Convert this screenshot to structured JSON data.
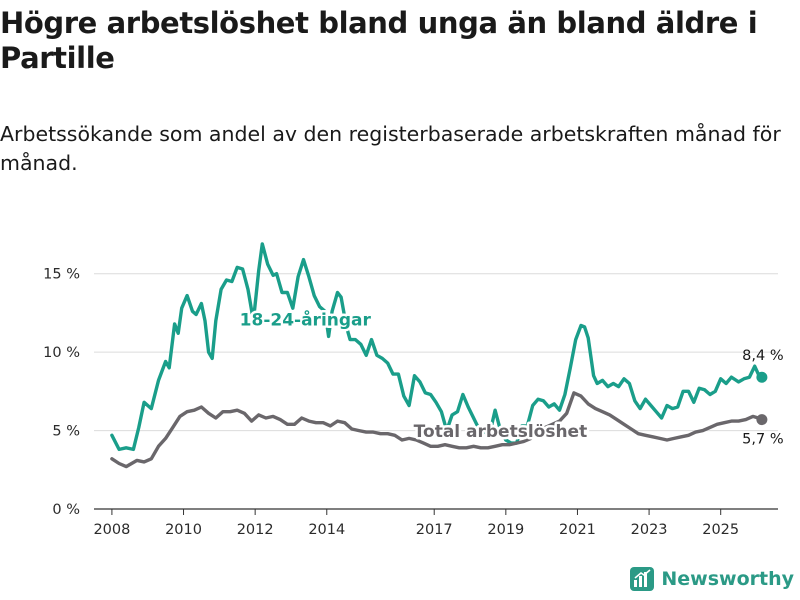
{
  "header": {
    "title": "Högre arbetslöshet bland unga än bland äldre i Partille",
    "subtitle": "Arbetssökande som andel av den registerbaserade arbetskraften månad för månad."
  },
  "brand": {
    "name": "Newsworthy",
    "icon": "newsworthy-logo-icon",
    "color": "#2b9a86"
  },
  "chart_data": {
    "type": "line",
    "title": "Högre arbetslöshet bland unga än bland äldre i Partille",
    "subtitle": "Arbetssökande som andel av den registerbaserade arbetskraften månad för månad.",
    "xlabel": "",
    "ylabel": "",
    "xlim": [
      2007.5,
      2026.6
    ],
    "ylim": [
      0,
      16
    ],
    "x_ticks": [
      2008,
      2010,
      2012,
      2014,
      2017,
      2019,
      2021,
      2023,
      2025
    ],
    "x_tick_labels": [
      "2008",
      "2010",
      "2012",
      "2014",
      "2017",
      "2019",
      "2021",
      "2023",
      "2025"
    ],
    "y_ticks": [
      0,
      5,
      10,
      15
    ],
    "y_tick_labels": [
      "0 %",
      "5 %",
      "10 %",
      "15 %"
    ],
    "grid": true,
    "series": [
      {
        "name": "18-24-åringar",
        "label": "18-24-åringar",
        "color": "#1a9e8a",
        "end_label": "8,4 %",
        "points": [
          [
            2008.0,
            4.7
          ],
          [
            2008.2,
            3.8
          ],
          [
            2008.4,
            3.9
          ],
          [
            2008.6,
            3.8
          ],
          [
            2008.75,
            5.2
          ],
          [
            2008.9,
            6.8
          ],
          [
            2009.1,
            6.4
          ],
          [
            2009.3,
            8.2
          ],
          [
            2009.5,
            9.4
          ],
          [
            2009.6,
            9.0
          ],
          [
            2009.75,
            11.8
          ],
          [
            2009.85,
            11.2
          ],
          [
            2009.95,
            12.8
          ],
          [
            2010.1,
            13.6
          ],
          [
            2010.25,
            12.6
          ],
          [
            2010.35,
            12.4
          ],
          [
            2010.5,
            13.1
          ],
          [
            2010.6,
            12.0
          ],
          [
            2010.7,
            10.0
          ],
          [
            2010.8,
            9.6
          ],
          [
            2010.9,
            12.0
          ],
          [
            2011.05,
            14.0
          ],
          [
            2011.2,
            14.6
          ],
          [
            2011.35,
            14.5
          ],
          [
            2011.5,
            15.4
          ],
          [
            2011.65,
            15.3
          ],
          [
            2011.8,
            14.0
          ],
          [
            2011.95,
            12.0
          ],
          [
            2012.1,
            15.2
          ],
          [
            2012.2,
            16.9
          ],
          [
            2012.35,
            15.6
          ],
          [
            2012.5,
            14.9
          ],
          [
            2012.6,
            15.0
          ],
          [
            2012.75,
            13.8
          ],
          [
            2012.9,
            13.8
          ],
          [
            2013.05,
            12.8
          ],
          [
            2013.2,
            14.8
          ],
          [
            2013.35,
            15.9
          ],
          [
            2013.5,
            14.8
          ],
          [
            2013.65,
            13.6
          ],
          [
            2013.8,
            12.9
          ],
          [
            2013.95,
            12.6
          ],
          [
            2014.05,
            11.0
          ],
          [
            2014.15,
            12.6
          ],
          [
            2014.3,
            13.8
          ],
          [
            2014.4,
            13.5
          ],
          [
            2014.55,
            11.6
          ],
          [
            2014.65,
            10.8
          ],
          [
            2014.8,
            10.8
          ],
          [
            2014.95,
            10.5
          ],
          [
            2015.1,
            9.8
          ],
          [
            2015.25,
            10.8
          ],
          [
            2015.4,
            9.8
          ],
          [
            2015.55,
            9.6
          ],
          [
            2015.7,
            9.3
          ],
          [
            2015.85,
            8.6
          ],
          [
            2016.0,
            8.6
          ],
          [
            2016.15,
            7.2
          ],
          [
            2016.3,
            6.6
          ],
          [
            2016.45,
            8.5
          ],
          [
            2016.6,
            8.1
          ],
          [
            2016.75,
            7.4
          ],
          [
            2016.9,
            7.3
          ],
          [
            2017.05,
            6.8
          ],
          [
            2017.2,
            6.2
          ],
          [
            2017.35,
            5.0
          ],
          [
            2017.5,
            6.0
          ],
          [
            2017.65,
            6.2
          ],
          [
            2017.8,
            7.3
          ],
          [
            2017.95,
            6.5
          ],
          [
            2018.1,
            5.8
          ],
          [
            2018.25,
            5.1
          ],
          [
            2018.4,
            4.9
          ],
          [
            2018.55,
            4.8
          ],
          [
            2018.7,
            6.3
          ],
          [
            2018.85,
            5.0
          ],
          [
            2019.0,
            4.4
          ],
          [
            2019.15,
            4.2
          ],
          [
            2019.3,
            4.2
          ],
          [
            2019.45,
            5.3
          ],
          [
            2019.6,
            5.3
          ],
          [
            2019.75,
            6.6
          ],
          [
            2019.9,
            7.0
          ],
          [
            2020.05,
            6.9
          ],
          [
            2020.2,
            6.5
          ],
          [
            2020.35,
            6.7
          ],
          [
            2020.5,
            6.3
          ],
          [
            2020.65,
            7.3
          ],
          [
            2020.8,
            9.0
          ],
          [
            2020.95,
            10.8
          ],
          [
            2021.1,
            11.7
          ],
          [
            2021.2,
            11.6
          ],
          [
            2021.3,
            10.9
          ],
          [
            2021.45,
            8.5
          ],
          [
            2021.55,
            8.0
          ],
          [
            2021.7,
            8.2
          ],
          [
            2021.85,
            7.8
          ],
          [
            2022.0,
            8.0
          ],
          [
            2022.15,
            7.8
          ],
          [
            2022.3,
            8.3
          ],
          [
            2022.45,
            8.0
          ],
          [
            2022.6,
            6.9
          ],
          [
            2022.75,
            6.4
          ],
          [
            2022.9,
            7.0
          ],
          [
            2023.05,
            6.6
          ],
          [
            2023.2,
            6.2
          ],
          [
            2023.35,
            5.8
          ],
          [
            2023.5,
            6.6
          ],
          [
            2023.65,
            6.4
          ],
          [
            2023.8,
            6.5
          ],
          [
            2023.95,
            7.5
          ],
          [
            2024.1,
            7.5
          ],
          [
            2024.25,
            6.8
          ],
          [
            2024.4,
            7.7
          ],
          [
            2024.55,
            7.6
          ],
          [
            2024.7,
            7.3
          ],
          [
            2024.85,
            7.5
          ],
          [
            2025.0,
            8.3
          ],
          [
            2025.15,
            8.0
          ],
          [
            2025.3,
            8.4
          ],
          [
            2025.5,
            8.1
          ],
          [
            2025.65,
            8.3
          ],
          [
            2025.8,
            8.4
          ],
          [
            2025.95,
            9.1
          ],
          [
            2026.05,
            8.6
          ],
          [
            2026.15,
            8.4
          ]
        ]
      },
      {
        "name": "Total arbetslöshet",
        "label": "Total arbetslöshet",
        "color": "#6a676b",
        "end_label": "5,7 %",
        "points": [
          [
            2008.0,
            3.2
          ],
          [
            2008.2,
            2.9
          ],
          [
            2008.4,
            2.7
          ],
          [
            2008.55,
            2.9
          ],
          [
            2008.7,
            3.1
          ],
          [
            2008.9,
            3.0
          ],
          [
            2009.1,
            3.2
          ],
          [
            2009.3,
            4.0
          ],
          [
            2009.5,
            4.5
          ],
          [
            2009.7,
            5.2
          ],
          [
            2009.9,
            5.9
          ],
          [
            2010.1,
            6.2
          ],
          [
            2010.3,
            6.3
          ],
          [
            2010.5,
            6.5
          ],
          [
            2010.7,
            6.1
          ],
          [
            2010.9,
            5.8
          ],
          [
            2011.1,
            6.2
          ],
          [
            2011.3,
            6.2
          ],
          [
            2011.5,
            6.3
          ],
          [
            2011.7,
            6.1
          ],
          [
            2011.9,
            5.6
          ],
          [
            2012.1,
            6.0
          ],
          [
            2012.3,
            5.8
          ],
          [
            2012.5,
            5.9
          ],
          [
            2012.7,
            5.7
          ],
          [
            2012.9,
            5.4
          ],
          [
            2013.1,
            5.4
          ],
          [
            2013.3,
            5.8
          ],
          [
            2013.5,
            5.6
          ],
          [
            2013.7,
            5.5
          ],
          [
            2013.9,
            5.5
          ],
          [
            2014.1,
            5.3
          ],
          [
            2014.3,
            5.6
          ],
          [
            2014.5,
            5.5
          ],
          [
            2014.7,
            5.1
          ],
          [
            2014.9,
            5.0
          ],
          [
            2015.1,
            4.9
          ],
          [
            2015.3,
            4.9
          ],
          [
            2015.5,
            4.8
          ],
          [
            2015.7,
            4.8
          ],
          [
            2015.9,
            4.7
          ],
          [
            2016.1,
            4.4
          ],
          [
            2016.3,
            4.5
          ],
          [
            2016.5,
            4.4
          ],
          [
            2016.7,
            4.2
          ],
          [
            2016.9,
            4.0
          ],
          [
            2017.1,
            4.0
          ],
          [
            2017.3,
            4.1
          ],
          [
            2017.5,
            4.0
          ],
          [
            2017.7,
            3.9
          ],
          [
            2017.9,
            3.9
          ],
          [
            2018.1,
            4.0
          ],
          [
            2018.3,
            3.9
          ],
          [
            2018.5,
            3.9
          ],
          [
            2018.7,
            4.0
          ],
          [
            2018.9,
            4.1
          ],
          [
            2019.1,
            4.1
          ],
          [
            2019.3,
            4.2
          ],
          [
            2019.5,
            4.3
          ],
          [
            2019.7,
            4.5
          ],
          [
            2019.9,
            4.9
          ],
          [
            2020.1,
            5.2
          ],
          [
            2020.3,
            5.4
          ],
          [
            2020.5,
            5.6
          ],
          [
            2020.7,
            6.1
          ],
          [
            2020.9,
            7.4
          ],
          [
            2021.1,
            7.2
          ],
          [
            2021.3,
            6.7
          ],
          [
            2021.5,
            6.4
          ],
          [
            2021.7,
            6.2
          ],
          [
            2021.9,
            6.0
          ],
          [
            2022.1,
            5.7
          ],
          [
            2022.3,
            5.4
          ],
          [
            2022.5,
            5.1
          ],
          [
            2022.7,
            4.8
          ],
          [
            2022.9,
            4.7
          ],
          [
            2023.1,
            4.6
          ],
          [
            2023.3,
            4.5
          ],
          [
            2023.5,
            4.4
          ],
          [
            2023.7,
            4.5
          ],
          [
            2023.9,
            4.6
          ],
          [
            2024.1,
            4.7
          ],
          [
            2024.3,
            4.9
          ],
          [
            2024.5,
            5.0
          ],
          [
            2024.7,
            5.2
          ],
          [
            2024.9,
            5.4
          ],
          [
            2025.1,
            5.5
          ],
          [
            2025.3,
            5.6
          ],
          [
            2025.5,
            5.6
          ],
          [
            2025.7,
            5.7
          ],
          [
            2025.9,
            5.9
          ],
          [
            2026.05,
            5.8
          ],
          [
            2026.15,
            5.7
          ]
        ]
      }
    ]
  }
}
